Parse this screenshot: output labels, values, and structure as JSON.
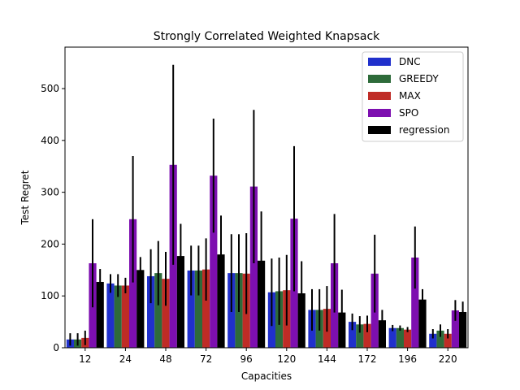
{
  "chart_data": {
    "type": "bar",
    "title": "Strongly Correlated Weighted Knapsack",
    "xlabel": "Capacities",
    "ylabel": "Test Regret",
    "ylim": [
      0,
      580
    ],
    "yticks": [
      0,
      100,
      200,
      300,
      400,
      500
    ],
    "categories": [
      "12",
      "24",
      "48",
      "72",
      "96",
      "120",
      "144",
      "172",
      "196",
      "220"
    ],
    "legend_position": "top-right",
    "grid": false,
    "series": [
      {
        "name": "DNC",
        "color": "#2030cc",
        "values": [
          16,
          124,
          138,
          149,
          144,
          107,
          73,
          50,
          38,
          27
        ],
        "errors": [
          12,
          18,
          52,
          48,
          75,
          65,
          40,
          16,
          6,
          9
        ]
      },
      {
        "name": "GREEDY",
        "color": "#2e6b3a",
        "values": [
          16,
          120,
          144,
          149,
          144,
          109,
          73,
          45,
          38,
          33
        ],
        "errors": [
          12,
          22,
          62,
          48,
          75,
          65,
          40,
          16,
          5,
          12
        ]
      },
      {
        "name": "MAX",
        "color": "#bf2c26",
        "values": [
          19,
          120,
          133,
          151,
          143,
          111,
          75,
          46,
          35,
          27
        ],
        "errors": [
          14,
          15,
          52,
          60,
          78,
          68,
          44,
          16,
          5,
          9
        ]
      },
      {
        "name": "SPO",
        "color": "#7d0fb0",
        "values": [
          163,
          248,
          353,
          332,
          311,
          249,
          163,
          143,
          174,
          72
        ],
        "errors": [
          85,
          122,
          193,
          110,
          148,
          140,
          95,
          75,
          60,
          20
        ]
      },
      {
        "name": "regression",
        "color": "#000000",
        "values": [
          127,
          150,
          177,
          180,
          168,
          105,
          68,
          53,
          93,
          69
        ],
        "errors": [
          25,
          25,
          62,
          75,
          95,
          62,
          44,
          20,
          20,
          20
        ]
      }
    ]
  }
}
